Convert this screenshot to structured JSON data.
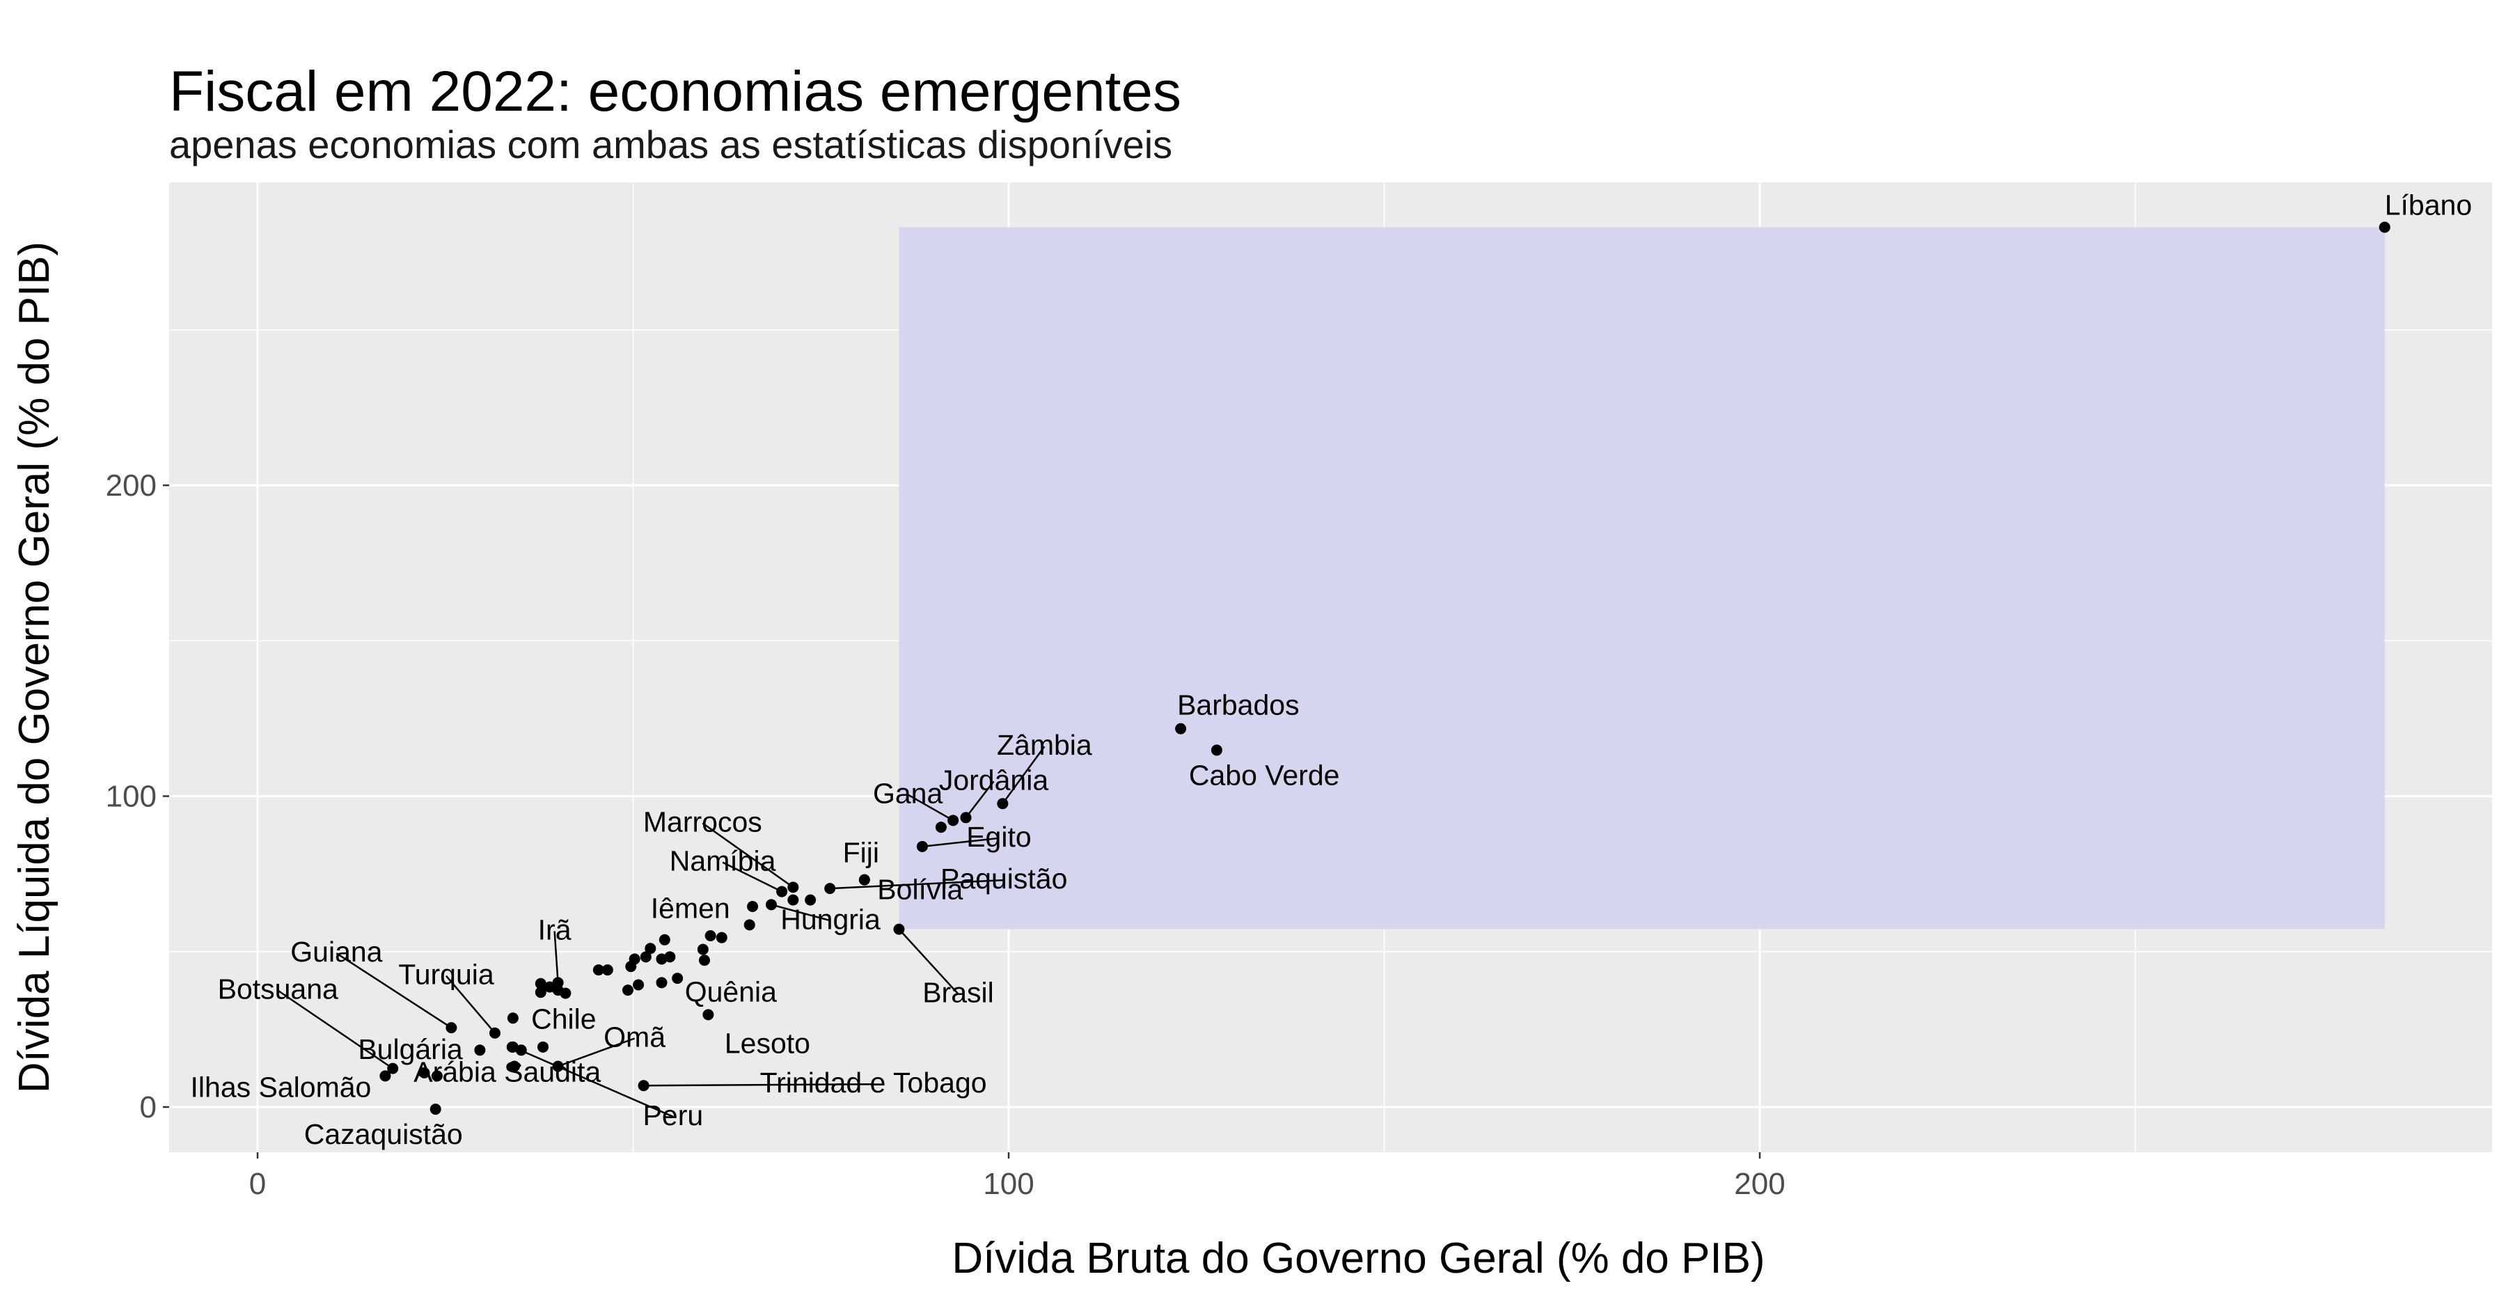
{
  "chart_data": {
    "type": "scatter",
    "title": "Fiscal em 2022: economias emergentes",
    "subtitle": "apenas economias com ambas as estatísticas disponíveis",
    "xlabel": "Dívida Bruta do Governo Geral (% do PIB)",
    "ylabel": "Dívida Líquida do Governo Geral (% do PIB)",
    "xlim": [
      -12,
      297
    ],
    "ylim": [
      -15,
      296
    ],
    "xticks": [
      0,
      100,
      200
    ],
    "yticks": [
      0,
      100,
      200
    ],
    "grid": true,
    "highlight_rect": {
      "x": [
        85.4,
        283.2
      ],
      "y": [
        57.2,
        283.0
      ],
      "color": "#d4d4f0"
    },
    "colors": {
      "panel": "#ebebeb",
      "grid": "#ffffff",
      "point": "#000000"
    },
    "points": [
      {
        "label": "Líbano",
        "x": 283.2,
        "y": 283.0
      },
      {
        "label": "Barbados",
        "x": 122.9,
        "y": 121.7
      },
      {
        "label": "Cabo Verde",
        "x": 127.7,
        "y": 114.8
      },
      {
        "label": "Zâmbia",
        "x": 99.2,
        "y": 97.6
      },
      {
        "label": "Jordânia",
        "x": 94.3,
        "y": 93.1
      },
      {
        "label": "Gana",
        "x": 92.6,
        "y": 92.2
      },
      {
        "label": "Egito",
        "x": 88.5,
        "y": 83.8
      },
      {
        "label": "",
        "x": 91.0,
        "y": 90.0
      },
      {
        "label": "Fiji",
        "x": 80.8,
        "y": 73.1
      },
      {
        "label": "Bolívia",
        "x": 80.8,
        "y": 73.1
      },
      {
        "label": "Paquistão",
        "x": 76.2,
        "y": 70.3
      },
      {
        "label": "Marrocos",
        "x": 71.3,
        "y": 70.7
      },
      {
        "label": "Namíbia",
        "x": 69.8,
        "y": 69.3
      },
      {
        "label": "",
        "x": 71.3,
        "y": 66.6
      },
      {
        "label": "",
        "x": 73.6,
        "y": 66.6
      },
      {
        "label": "",
        "x": 65.9,
        "y": 64.5
      },
      {
        "label": "Hungria",
        "x": 68.4,
        "y": 65.1
      },
      {
        "label": "Brasil",
        "x": 85.4,
        "y": 57.2
      },
      {
        "label": "Iêmen",
        "x": 65.5,
        "y": 58.6
      },
      {
        "label": "",
        "x": 60.3,
        "y": 55.1
      },
      {
        "label": "",
        "x": 61.8,
        "y": 54.5
      },
      {
        "label": "Quênia",
        "x": 59.3,
        "y": 50.7
      },
      {
        "label": "",
        "x": 59.5,
        "y": 47.2
      },
      {
        "label": "",
        "x": 54.2,
        "y": 53.8
      },
      {
        "label": "",
        "x": 52.3,
        "y": 51.0
      },
      {
        "label": "",
        "x": 51.7,
        "y": 48.3
      },
      {
        "label": "",
        "x": 53.8,
        "y": 47.6
      },
      {
        "label": "",
        "x": 54.9,
        "y": 48.3
      },
      {
        "label": "",
        "x": 50.2,
        "y": 47.6
      },
      {
        "label": "",
        "x": 49.7,
        "y": 45.2
      },
      {
        "label": "",
        "x": 45.4,
        "y": 44.1
      },
      {
        "label": "",
        "x": 46.6,
        "y": 44.1
      },
      {
        "label": "",
        "x": 55.9,
        "y": 41.4
      },
      {
        "label": "",
        "x": 53.8,
        "y": 40.0
      },
      {
        "label": "",
        "x": 50.7,
        "y": 39.3
      },
      {
        "label": "",
        "x": 49.3,
        "y": 37.6
      },
      {
        "label": "Irã",
        "x": 40.0,
        "y": 40.0
      },
      {
        "label": "",
        "x": 38.9,
        "y": 38.6
      },
      {
        "label": "",
        "x": 40.0,
        "y": 37.6
      },
      {
        "label": "",
        "x": 41.0,
        "y": 36.6
      },
      {
        "label": "",
        "x": 37.7,
        "y": 39.7
      },
      {
        "label": "",
        "x": 37.7,
        "y": 36.9
      },
      {
        "label": "Lesoto",
        "x": 60.0,
        "y": 29.7
      },
      {
        "label": "Chile",
        "x": 34.0,
        "y": 28.6
      },
      {
        "label": "Guiana",
        "x": 25.8,
        "y": 25.5
      },
      {
        "label": "Turquia",
        "x": 31.6,
        "y": 23.8
      },
      {
        "label": "",
        "x": 29.6,
        "y": 18.3
      },
      {
        "label": "",
        "x": 33.9,
        "y": 19.3
      },
      {
        "label": "",
        "x": 38.0,
        "y": 19.3
      },
      {
        "label": "Omã",
        "x": 40.0,
        "y": 13.1
      },
      {
        "label": "",
        "x": 34.2,
        "y": 13.1
      },
      {
        "label": "Botsuana",
        "x": 18.0,
        "y": 12.4
      },
      {
        "label": "Bulgária",
        "x": 22.2,
        "y": 11.0
      },
      {
        "label": "",
        "x": 23.9,
        "y": 10.0
      },
      {
        "label": "Arábia Saudita",
        "x": 35.1,
        "y": 18.3
      },
      {
        "label": "Ilhas Salomão",
        "x": 17.0,
        "y": 10.0
      },
      {
        "label": "Peru",
        "x": 34.0,
        "y": 19.3
      },
      {
        "label": "Trinidad e Tobago",
        "x": 51.4,
        "y": 6.9
      },
      {
        "label": "Cazaquistão",
        "x": 23.7,
        "y": -0.7
      }
    ],
    "labels": [
      {
        "text": "Líbano",
        "x": 283.2,
        "y": 283.0
      },
      {
        "text": "Barbados",
        "x": 122.9,
        "y": 121.7
      },
      {
        "text": "Cabo Verde",
        "x": 127.7,
        "y": 114.8
      },
      {
        "text": "Zâmbia",
        "x": 99.2,
        "y": 97.6
      },
      {
        "text": "Jordânia",
        "x": 94.3,
        "y": 93.1
      },
      {
        "text": "Gana",
        "x": 92.6,
        "y": 92.2
      },
      {
        "text": "Egito",
        "x": 88.5,
        "y": 83.8
      },
      {
        "text": "Marrocos",
        "x": 71.3,
        "y": 70.7
      },
      {
        "text": "Fiji",
        "x": 80.8,
        "y": 73.1
      },
      {
        "text": "Bolívia",
        "x": 80.8,
        "y": 73.1
      },
      {
        "text": "Namíbia",
        "x": 69.8,
        "y": 69.3
      },
      {
        "text": "Paquistão",
        "x": 76.2,
        "y": 70.3
      },
      {
        "text": "Iêmen",
        "x": 65.5,
        "y": 58.6
      },
      {
        "text": "Hungria",
        "x": 68.4,
        "y": 65.1
      },
      {
        "text": "Brasil",
        "x": 85.4,
        "y": 57.2
      },
      {
        "text": "Quênia",
        "x": 59.3,
        "y": 50.7
      },
      {
        "text": "Irã",
        "x": 40.0,
        "y": 40.0
      },
      {
        "text": "Guiana",
        "x": 25.8,
        "y": 25.5
      },
      {
        "text": "Botsuana",
        "x": 18.0,
        "y": 12.4
      },
      {
        "text": "Turquia",
        "x": 31.6,
        "y": 23.8
      },
      {
        "text": "Chile",
        "x": 34.0,
        "y": 28.6
      },
      {
        "text": "Lesoto",
        "x": 60.0,
        "y": 29.7
      },
      {
        "text": "Bulgária",
        "x": 22.2,
        "y": 11.0
      },
      {
        "text": "Omã",
        "x": 40.0,
        "y": 13.1
      },
      {
        "text": "Ilhas Salomão",
        "x": 17.0,
        "y": 10.0
      },
      {
        "text": "Arábia Saudita",
        "x": 35.1,
        "y": 18.3
      },
      {
        "text": "Trinidad e Tobago",
        "x": 51.4,
        "y": 6.9
      },
      {
        "text": "Cazaquistão",
        "x": 23.7,
        "y": -0.7
      },
      {
        "text": "Peru",
        "x": 34.0,
        "y": 19.3
      }
    ]
  }
}
